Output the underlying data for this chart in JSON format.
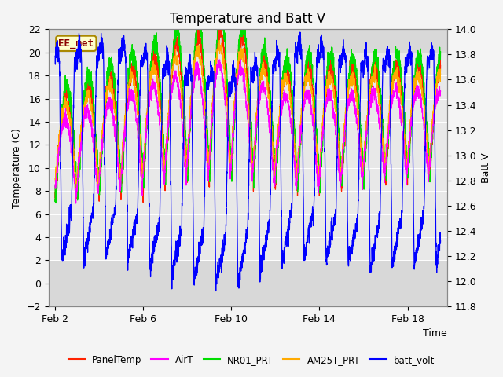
{
  "title": "Temperature and Batt V",
  "xlabel": "Time",
  "ylabel_left": "Temperature (C)",
  "ylabel_right": "Batt V",
  "ylim_left": [
    -2,
    22
  ],
  "ylim_right": [
    11.8,
    14.0
  ],
  "yticks_left": [
    -2,
    0,
    2,
    4,
    6,
    8,
    10,
    12,
    14,
    16,
    18,
    20,
    22
  ],
  "yticks_right": [
    11.8,
    12.0,
    12.2,
    12.4,
    12.6,
    12.8,
    13.0,
    13.2,
    13.4,
    13.6,
    13.8,
    14.0
  ],
  "xtick_labels": [
    "Feb 2",
    "Feb 6",
    "Feb 10",
    "Feb 14",
    "Feb 18"
  ],
  "xtick_positions": [
    2,
    6,
    10,
    14,
    18
  ],
  "xmin": 1.7,
  "xmax": 19.8,
  "shade_ymin": 2,
  "shade_ymax": 20,
  "annotation_text": "EE_met",
  "colors": {
    "PanelTemp": "#ff2200",
    "AirT": "#ff00ff",
    "NR01_PRT": "#00dd00",
    "AM25T_PRT": "#ffaa00",
    "batt_volt": "#0000ff"
  },
  "legend_labels": [
    "PanelTemp",
    "AirT",
    "NR01_PRT",
    "AM25T_PRT",
    "batt_volt"
  ],
  "plot_bg_color": "#d8d8d8",
  "fig_bg_color": "#f4f4f4",
  "shade_color": "#e8e8e8",
  "title_fontsize": 12,
  "axis_fontsize": 9,
  "tick_fontsize": 9,
  "figsize": [
    6.4,
    4.8
  ],
  "dpi": 100
}
